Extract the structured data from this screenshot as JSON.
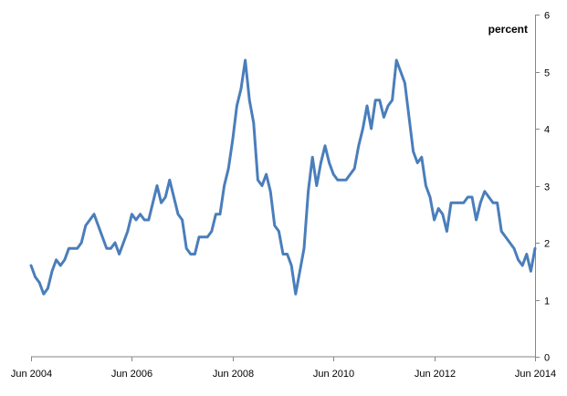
{
  "chart_data": {
    "type": "line",
    "title": "",
    "xlabel": "",
    "ylabel": "percent",
    "y_axis_position": "right",
    "ylim": [
      0,
      6
    ],
    "yticks": [
      0,
      1,
      2,
      3,
      4,
      5,
      6
    ],
    "x_tick_labels": [
      "Jun 2004",
      "Jun 2006",
      "Jun 2008",
      "Jun 2010",
      "Jun 2012",
      "Jun 2014"
    ],
    "x_range": [
      "Jun 2004",
      "Jun 2014"
    ],
    "grid": false,
    "legend": "none",
    "colors": {
      "line": "#4a7ebb",
      "axis": "#868686",
      "text": "#000000"
    },
    "series": [
      {
        "x": [
          "2004-06",
          "2004-07",
          "2004-08",
          "2004-09",
          "2004-10",
          "2004-11",
          "2004-12",
          "2005-01",
          "2005-02",
          "2005-03",
          "2005-04",
          "2005-05",
          "2005-06",
          "2005-07",
          "2005-08",
          "2005-09",
          "2005-10",
          "2005-11",
          "2005-12",
          "2006-01",
          "2006-02",
          "2006-03",
          "2006-04",
          "2006-05",
          "2006-06",
          "2006-07",
          "2006-08",
          "2006-09",
          "2006-10",
          "2006-11",
          "2006-12",
          "2007-01",
          "2007-02",
          "2007-03",
          "2007-04",
          "2007-05",
          "2007-06",
          "2007-07",
          "2007-08",
          "2007-09",
          "2007-10",
          "2007-11",
          "2007-12",
          "2008-01",
          "2008-02",
          "2008-03",
          "2008-04",
          "2008-05",
          "2008-06",
          "2008-07",
          "2008-08",
          "2008-09",
          "2008-10",
          "2008-11",
          "2008-12",
          "2009-01",
          "2009-02",
          "2009-03",
          "2009-04",
          "2009-05",
          "2009-06",
          "2009-07",
          "2009-08",
          "2009-09",
          "2009-10",
          "2009-11",
          "2009-12",
          "2010-01",
          "2010-02",
          "2010-03",
          "2010-04",
          "2010-05",
          "2010-06",
          "2010-07",
          "2010-08",
          "2010-09",
          "2010-10",
          "2010-11",
          "2010-12",
          "2011-01",
          "2011-02",
          "2011-03",
          "2011-04",
          "2011-05",
          "2011-06",
          "2011-07",
          "2011-08",
          "2011-09",
          "2011-10",
          "2011-11",
          "2011-12",
          "2012-01",
          "2012-02",
          "2012-03",
          "2012-04",
          "2012-05",
          "2012-06",
          "2012-07",
          "2012-08",
          "2012-09",
          "2012-10",
          "2012-11",
          "2012-12",
          "2013-01",
          "2013-02",
          "2013-03",
          "2013-04",
          "2013-05",
          "2013-06",
          "2013-07",
          "2013-08",
          "2013-09",
          "2013-10",
          "2013-11",
          "2013-12",
          "2014-01",
          "2014-02",
          "2014-03",
          "2014-04",
          "2014-05",
          "2014-06"
        ],
        "values": [
          1.6,
          1.4,
          1.3,
          1.1,
          1.2,
          1.5,
          1.7,
          1.6,
          1.7,
          1.9,
          1.9,
          1.9,
          2.0,
          2.3,
          2.4,
          2.5,
          2.3,
          2.1,
          1.9,
          1.9,
          2.0,
          1.8,
          2.0,
          2.2,
          2.5,
          2.4,
          2.5,
          2.4,
          2.4,
          2.7,
          3.0,
          2.7,
          2.8,
          3.1,
          2.8,
          2.5,
          2.4,
          1.9,
          1.8,
          1.8,
          2.1,
          2.1,
          2.1,
          2.2,
          2.5,
          2.5,
          3.0,
          3.3,
          3.8,
          4.4,
          4.7,
          5.2,
          4.5,
          4.1,
          3.1,
          3.0,
          3.2,
          2.9,
          2.3,
          2.2,
          1.8,
          1.8,
          1.6,
          1.1,
          1.5,
          1.9,
          2.9,
          3.5,
          3.0,
          3.4,
          3.7,
          3.4,
          3.2,
          3.1,
          3.1,
          3.1,
          3.2,
          3.3,
          3.7,
          4.0,
          4.4,
          4.0,
          4.5,
          4.5,
          4.2,
          4.4,
          4.5,
          5.2,
          5.0,
          4.8,
          4.2,
          3.6,
          3.4,
          3.5,
          3.0,
          2.8,
          2.4,
          2.6,
          2.5,
          2.2,
          2.7,
          2.7,
          2.7,
          2.7,
          2.8,
          2.8,
          2.4,
          2.7,
          2.9,
          2.8,
          2.7,
          2.7,
          2.2,
          2.1,
          2.0,
          1.9,
          1.7,
          1.6,
          1.8,
          1.5,
          1.9
        ]
      }
    ]
  }
}
